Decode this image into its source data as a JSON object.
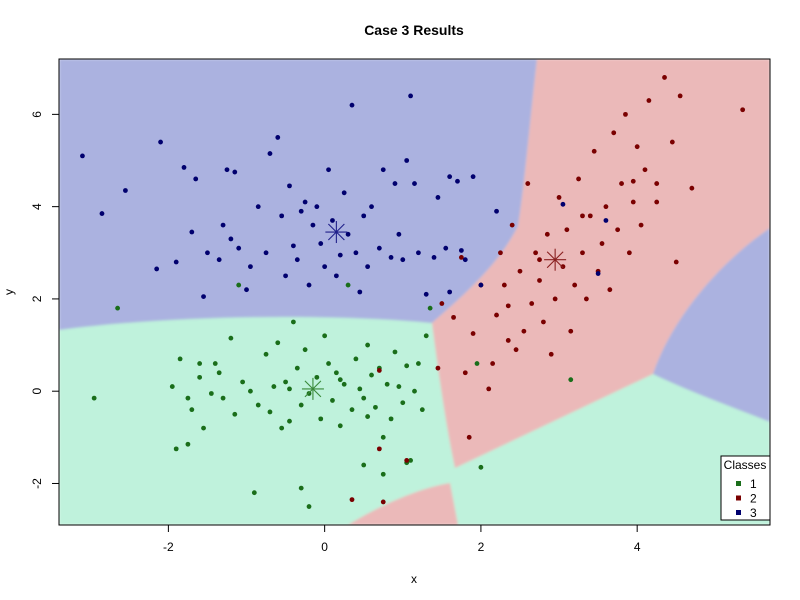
{
  "chart_data": {
    "type": "scatter",
    "title": "Case 3 Results",
    "xlabel": "x",
    "ylabel": "y",
    "xlim": [
      -3.4,
      5.7
    ],
    "ylim": [
      -2.9,
      7.2
    ],
    "x_ticks": [
      -2,
      0,
      2,
      4
    ],
    "y_ticks": [
      -2,
      0,
      2,
      4,
      6
    ],
    "grid": false,
    "legend": {
      "title": "Classes",
      "position": "bottom-right",
      "entries": [
        {
          "label": "1",
          "color": "#1a6e1a"
        },
        {
          "label": "2",
          "color": "#7a0000"
        },
        {
          "label": "3",
          "color": "#00006e"
        }
      ]
    },
    "region_colors": {
      "1": "#bff2dc",
      "2": "#ebb9b9",
      "3": "#abb2e0"
    },
    "centroids": [
      {
        "class": "1",
        "x": -0.15,
        "y": 0.05,
        "color": "#3a8a3a"
      },
      {
        "class": "2",
        "x": 2.95,
        "y": 2.85,
        "color": "#8a2020"
      },
      {
        "class": "3",
        "x": 0.15,
        "y": 3.45,
        "color": "#20208a"
      }
    ],
    "series": [
      {
        "name": "1",
        "color": "#1a6e1a",
        "points": [
          [
            -2.95,
            -0.15
          ],
          [
            -2.65,
            1.8
          ],
          [
            -1.95,
            0.1
          ],
          [
            -1.9,
            -1.25
          ],
          [
            -1.85,
            0.7
          ],
          [
            -1.75,
            -0.15
          ],
          [
            -1.75,
            -1.15
          ],
          [
            -1.7,
            -0.4
          ],
          [
            -1.6,
            0.3
          ],
          [
            -1.55,
            -0.8
          ],
          [
            -1.45,
            -0.05
          ],
          [
            -1.4,
            0.6
          ],
          [
            -1.35,
            0.4
          ],
          [
            -1.3,
            -0.15
          ],
          [
            -1.2,
            1.15
          ],
          [
            -1.15,
            -0.5
          ],
          [
            -1.1,
            2.3
          ],
          [
            -1.05,
            0.2
          ],
          [
            -0.95,
            0.0
          ],
          [
            -0.85,
            -0.3
          ],
          [
            -0.75,
            0.8
          ],
          [
            -0.7,
            -0.45
          ],
          [
            -0.65,
            0.1
          ],
          [
            -0.55,
            -0.8
          ],
          [
            -0.5,
            0.2
          ],
          [
            -0.45,
            -0.65
          ],
          [
            -0.4,
            1.5
          ],
          [
            -0.35,
            0.5
          ],
          [
            -0.3,
            -0.3
          ],
          [
            -0.25,
            0.9
          ],
          [
            -0.2,
            -0.05
          ],
          [
            -0.1,
            0.3
          ],
          [
            -0.05,
            -0.6
          ],
          [
            0.0,
            1.2
          ],
          [
            0.05,
            0.6
          ],
          [
            0.1,
            -0.2
          ],
          [
            0.15,
            0.4
          ],
          [
            0.2,
            -0.75
          ],
          [
            0.25,
            0.15
          ],
          [
            0.3,
            2.3
          ],
          [
            0.35,
            -0.4
          ],
          [
            0.4,
            0.7
          ],
          [
            0.45,
            0.05
          ],
          [
            0.5,
            -0.15
          ],
          [
            0.55,
            1.0
          ],
          [
            0.6,
            0.35
          ],
          [
            0.65,
            -0.35
          ],
          [
            0.7,
            0.5
          ],
          [
            0.75,
            -1.0
          ],
          [
            0.8,
            0.15
          ],
          [
            0.85,
            -0.6
          ],
          [
            0.9,
            0.85
          ],
          [
            0.95,
            0.1
          ],
          [
            1.0,
            -0.25
          ],
          [
            1.05,
            0.55
          ],
          [
            1.1,
            -1.5
          ],
          [
            1.15,
            0.0
          ],
          [
            1.2,
            0.6
          ],
          [
            1.25,
            -0.4
          ],
          [
            1.3,
            1.2
          ],
          [
            1.35,
            1.8
          ],
          [
            -0.9,
            -2.2
          ],
          [
            -0.3,
            -2.1
          ],
          [
            -0.2,
            -2.5
          ],
          [
            0.5,
            -1.6
          ],
          [
            0.75,
            -1.8
          ],
          [
            1.05,
            -1.55
          ],
          [
            1.95,
            0.6
          ],
          [
            2.0,
            -1.65
          ],
          [
            3.15,
            0.25
          ],
          [
            -1.6,
            0.6
          ],
          [
            -0.6,
            1.05
          ],
          [
            0.2,
            0.25
          ],
          [
            -0.45,
            0.05
          ],
          [
            0.55,
            -0.55
          ]
        ]
      },
      {
        "name": "2",
        "color": "#7a0000",
        "points": [
          [
            0.35,
            -2.35
          ],
          [
            0.75,
            -2.4
          ],
          [
            0.7,
            0.45
          ],
          [
            0.7,
            -1.25
          ],
          [
            1.05,
            -1.5
          ],
          [
            1.45,
            0.5
          ],
          [
            1.5,
            1.9
          ],
          [
            1.65,
            1.6
          ],
          [
            1.75,
            2.9
          ],
          [
            1.8,
            0.4
          ],
          [
            1.85,
            -1.0
          ],
          [
            1.9,
            1.25
          ],
          [
            2.0,
            2.3
          ],
          [
            2.1,
            0.05
          ],
          [
            2.15,
            0.6
          ],
          [
            2.2,
            1.65
          ],
          [
            2.25,
            3.0
          ],
          [
            2.3,
            2.3
          ],
          [
            2.35,
            1.1
          ],
          [
            2.4,
            3.6
          ],
          [
            2.45,
            0.9
          ],
          [
            2.5,
            2.6
          ],
          [
            2.55,
            1.3
          ],
          [
            2.6,
            4.5
          ],
          [
            2.65,
            1.9
          ],
          [
            2.7,
            3.0
          ],
          [
            2.75,
            2.4
          ],
          [
            2.8,
            1.5
          ],
          [
            2.85,
            3.4
          ],
          [
            2.9,
            0.8
          ],
          [
            2.95,
            2.0
          ],
          [
            3.0,
            4.2
          ],
          [
            3.05,
            2.7
          ],
          [
            3.1,
            3.5
          ],
          [
            3.15,
            1.3
          ],
          [
            3.2,
            2.3
          ],
          [
            3.25,
            4.6
          ],
          [
            3.3,
            3.0
          ],
          [
            3.35,
            2.0
          ],
          [
            3.4,
            3.8
          ],
          [
            3.45,
            5.2
          ],
          [
            3.5,
            2.6
          ],
          [
            3.55,
            3.2
          ],
          [
            3.6,
            4.0
          ],
          [
            3.65,
            2.2
          ],
          [
            3.7,
            5.6
          ],
          [
            3.75,
            3.5
          ],
          [
            3.8,
            4.5
          ],
          [
            3.85,
            6.0
          ],
          [
            3.9,
            3.0
          ],
          [
            3.95,
            4.1
          ],
          [
            4.0,
            5.3
          ],
          [
            4.05,
            3.6
          ],
          [
            4.1,
            4.8
          ],
          [
            4.15,
            6.3
          ],
          [
            4.25,
            4.1
          ],
          [
            4.35,
            6.8
          ],
          [
            4.45,
            5.4
          ],
          [
            4.5,
            2.8
          ],
          [
            4.55,
            6.4
          ],
          [
            4.7,
            4.4
          ],
          [
            5.35,
            6.1
          ],
          [
            3.3,
            3.8
          ],
          [
            2.35,
            1.85
          ],
          [
            2.75,
            2.85
          ],
          [
            3.95,
            4.55
          ],
          [
            4.25,
            4.5
          ]
        ]
      },
      {
        "name": "3",
        "color": "#00006e",
        "points": [
          [
            -3.1,
            5.1
          ],
          [
            -2.85,
            3.85
          ],
          [
            -2.55,
            4.35
          ],
          [
            -2.15,
            2.65
          ],
          [
            -2.1,
            5.4
          ],
          [
            -1.9,
            2.8
          ],
          [
            -1.8,
            4.85
          ],
          [
            -1.7,
            3.45
          ],
          [
            -1.65,
            4.6
          ],
          [
            -1.55,
            2.05
          ],
          [
            -1.5,
            3.0
          ],
          [
            -1.35,
            2.85
          ],
          [
            -1.3,
            3.6
          ],
          [
            -1.25,
            4.8
          ],
          [
            -1.2,
            3.3
          ],
          [
            -1.15,
            4.75
          ],
          [
            -1.1,
            3.1
          ],
          [
            -1.0,
            2.2
          ],
          [
            -0.95,
            2.7
          ],
          [
            -0.85,
            4.0
          ],
          [
            -0.75,
            3.0
          ],
          [
            -0.7,
            5.15
          ],
          [
            -0.6,
            5.5
          ],
          [
            -0.55,
            3.8
          ],
          [
            -0.5,
            2.5
          ],
          [
            -0.45,
            4.45
          ],
          [
            -0.4,
            3.15
          ],
          [
            -0.35,
            2.85
          ],
          [
            -0.3,
            3.9
          ],
          [
            -0.25,
            4.1
          ],
          [
            -0.2,
            2.3
          ],
          [
            -0.15,
            3.6
          ],
          [
            -0.1,
            4.0
          ],
          [
            -0.05,
            3.2
          ],
          [
            0.0,
            2.7
          ],
          [
            0.05,
            4.8
          ],
          [
            0.1,
            3.7
          ],
          [
            0.15,
            2.5
          ],
          [
            0.2,
            2.95
          ],
          [
            0.25,
            4.3
          ],
          [
            0.3,
            3.4
          ],
          [
            0.35,
            6.2
          ],
          [
            0.4,
            3.0
          ],
          [
            0.45,
            2.15
          ],
          [
            0.5,
            3.8
          ],
          [
            0.55,
            2.7
          ],
          [
            0.6,
            4.0
          ],
          [
            0.7,
            3.1
          ],
          [
            0.75,
            4.8
          ],
          [
            0.85,
            2.9
          ],
          [
            0.9,
            4.5
          ],
          [
            0.95,
            3.4
          ],
          [
            1.0,
            2.85
          ],
          [
            1.05,
            5.0
          ],
          [
            1.1,
            6.4
          ],
          [
            1.15,
            4.5
          ],
          [
            1.2,
            3.0
          ],
          [
            1.3,
            2.1
          ],
          [
            1.4,
            2.9
          ],
          [
            1.45,
            4.2
          ],
          [
            1.6,
            4.65
          ],
          [
            1.7,
            4.55
          ],
          [
            1.8,
            2.85
          ],
          [
            1.9,
            4.65
          ],
          [
            2.0,
            2.3
          ],
          [
            2.2,
            3.9
          ],
          [
            1.55,
            3.1
          ],
          [
            3.05,
            4.05
          ],
          [
            3.5,
            2.55
          ],
          [
            3.6,
            3.7
          ],
          [
            1.75,
            3.05
          ],
          [
            1.6,
            2.15
          ]
        ]
      }
    ]
  }
}
